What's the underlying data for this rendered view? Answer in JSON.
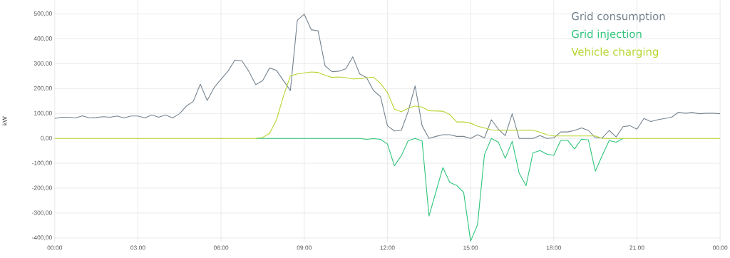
{
  "chart_data": {
    "type": "line",
    "ylabel": "kW",
    "x": [
      0,
      0.25,
      0.5,
      0.75,
      1,
      1.25,
      1.5,
      1.75,
      2,
      2.25,
      2.5,
      2.75,
      3,
      3.25,
      3.5,
      3.75,
      4,
      4.25,
      4.5,
      4.75,
      5,
      5.25,
      5.5,
      5.75,
      6,
      6.25,
      6.5,
      6.75,
      7,
      7.25,
      7.5,
      7.75,
      8,
      8.25,
      8.5,
      8.75,
      9,
      9.25,
      9.5,
      9.75,
      10,
      10.25,
      10.5,
      10.75,
      11,
      11.25,
      11.5,
      11.75,
      12,
      12.25,
      12.5,
      12.75,
      13,
      13.25,
      13.5,
      13.75,
      14,
      14.25,
      14.5,
      14.75,
      15,
      15.25,
      15.5,
      15.75,
      16,
      16.25,
      16.5,
      16.75,
      17,
      17.25,
      17.5,
      17.75,
      18,
      18.25,
      18.5,
      18.75,
      19,
      19.25,
      19.5,
      19.75,
      20,
      20.25,
      20.5,
      20.75,
      21,
      21.25,
      21.5,
      21.75,
      22,
      22.25,
      22.5,
      22.75,
      23,
      23.25,
      23.5,
      23.75,
      24
    ],
    "series": [
      {
        "name": "Grid consumption",
        "color": "#75838f",
        "values": [
          80,
          85,
          85,
          82,
          91,
          82,
          84,
          87,
          85,
          90,
          82,
          90,
          90,
          82,
          94,
          85,
          94,
          82,
          99,
          130,
          149,
          218,
          152,
          204,
          238,
          270,
          315,
          312,
          270,
          216,
          232,
          283,
          273,
          232,
          192,
          475,
          499,
          437,
          432,
          292,
          268,
          270,
          280,
          328,
          259,
          244,
          192,
          168,
          51,
          30,
          32,
          109,
          211,
          51,
          0,
          8,
          15,
          15,
          8,
          8,
          0,
          15,
          2,
          75,
          37,
          11,
          99,
          0,
          0,
          0,
          11,
          0,
          2,
          26,
          26,
          32,
          42,
          32,
          2,
          2,
          32,
          6,
          47,
          51,
          37,
          80,
          68,
          75,
          80,
          85,
          105,
          101,
          104,
          99,
          101,
          101,
          99
        ]
      },
      {
        "name": "Grid injection",
        "color": "#2ec47a",
        "values": [
          null,
          null,
          null,
          null,
          null,
          null,
          null,
          null,
          null,
          null,
          null,
          null,
          null,
          null,
          null,
          null,
          null,
          null,
          null,
          null,
          null,
          null,
          null,
          null,
          null,
          null,
          null,
          null,
          null,
          0,
          0,
          0,
          0,
          0,
          0,
          0,
          0,
          0,
          0,
          0,
          0,
          0,
          0,
          0,
          0,
          -4,
          -1,
          -4,
          -22,
          -110,
          -70,
          -9,
          0,
          -10,
          -312,
          -215,
          -117,
          -177,
          -189,
          -217,
          -413,
          -347,
          -65,
          0,
          -15,
          -80,
          -12,
          -139,
          -190,
          -58,
          -49,
          -63,
          -68,
          -8,
          -8,
          -42,
          -3,
          -6,
          -132,
          -68,
          -9,
          -15,
          0,
          null,
          null,
          null,
          null,
          null,
          null,
          null,
          null,
          null,
          null,
          null,
          null,
          null,
          null
        ]
      },
      {
        "name": "Vehicle charging",
        "color": "#b5d630",
        "values": [
          0,
          0,
          0,
          0,
          0,
          0,
          0,
          0,
          0,
          0,
          0,
          0,
          0,
          0,
          0,
          0,
          0,
          0,
          0,
          0,
          0,
          0,
          0,
          0,
          0,
          0,
          0,
          0,
          0,
          0,
          4,
          20,
          75,
          170,
          251,
          259,
          263,
          267,
          265,
          254,
          245,
          247,
          244,
          239,
          240,
          244,
          246,
          221,
          185,
          118,
          107,
          121,
          130,
          126,
          111,
          110,
          109,
          96,
          66,
          66,
          61,
          49,
          42,
          34,
          33,
          33,
          33,
          33,
          33,
          33,
          25,
          15,
          10,
          10,
          10,
          10,
          10,
          10,
          10,
          0,
          0,
          0,
          0,
          0,
          0,
          0,
          0,
          0,
          0,
          0,
          0,
          0,
          0,
          0,
          0,
          0,
          0
        ]
      }
    ],
    "xlim": [
      0,
      24
    ],
    "xticks": [
      {
        "value": 0,
        "label": "00:00"
      },
      {
        "value": 3,
        "label": "03:00"
      },
      {
        "value": 6,
        "label": "06:00"
      },
      {
        "value": 9,
        "label": "09:00"
      },
      {
        "value": 12,
        "label": "12:00"
      },
      {
        "value": 15,
        "label": "15:00"
      },
      {
        "value": 18,
        "label": "18:00"
      },
      {
        "value": 21,
        "label": "21:00"
      },
      {
        "value": 24,
        "label": "00:00"
      }
    ],
    "ylim": [
      -415,
      555
    ],
    "yticks": [
      {
        "value": -400,
        "label": "-400,00"
      },
      {
        "value": -300,
        "label": "-300,00"
      },
      {
        "value": -200,
        "label": "-200,00"
      },
      {
        "value": -100,
        "label": "-100,00"
      },
      {
        "value": 0,
        "label": "0,00"
      },
      {
        "value": 100,
        "label": "100,00"
      },
      {
        "value": 200,
        "label": "200,00"
      },
      {
        "value": 300,
        "label": "300,00"
      },
      {
        "value": 400,
        "label": "400,00"
      },
      {
        "value": 500,
        "label": "500,00"
      }
    ],
    "grid": true,
    "legend": "top right",
    "marker": "none",
    "line_style": "solid"
  }
}
